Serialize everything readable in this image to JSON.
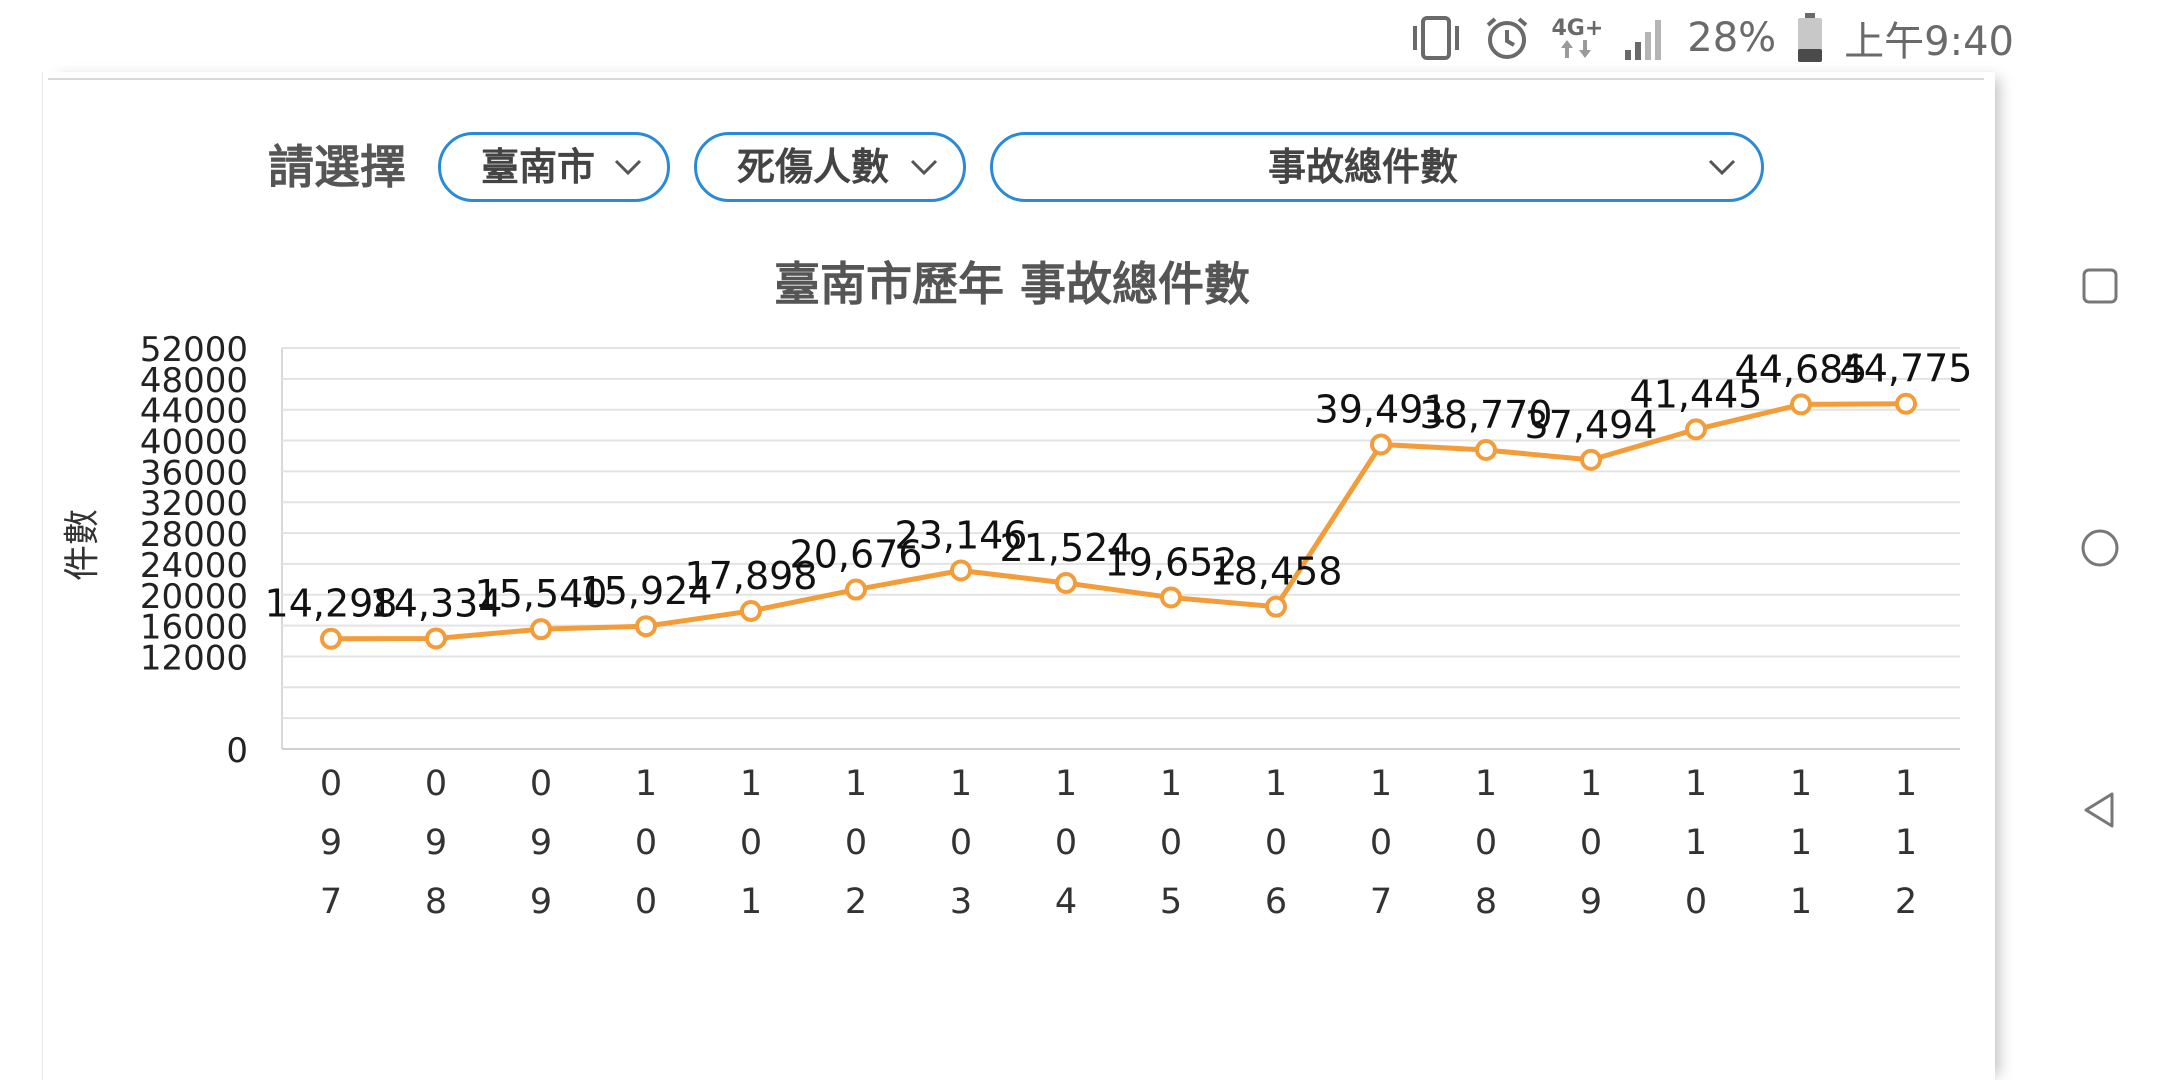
{
  "statusbar": {
    "network": "4G+",
    "battery": "28%",
    "time": "上午9:40"
  },
  "selector": {
    "label": "請選擇",
    "city": "臺南市",
    "category": "死傷人數",
    "metric": "事故總件數"
  },
  "icons": {
    "vibrate": "vibrate-icon",
    "alarm": "alarm-icon",
    "network": "network-4g-icon",
    "signal": "signal-icon",
    "battery": "battery-icon",
    "nav_recents": "square-icon",
    "nav_home": "circle-icon",
    "nav_back": "triangle-back-icon",
    "dropdown": "chevron-down-icon"
  },
  "colors": {
    "accent": "#2a8ad8",
    "series": "#f39c3a"
  },
  "chart_data": {
    "type": "line",
    "title": "臺南市歷年 事故總件數",
    "ylabel": "件數",
    "xlabel": "",
    "categories": [
      "097",
      "098",
      "099",
      "100",
      "101",
      "102",
      "103",
      "104",
      "105",
      "106",
      "107",
      "108",
      "109",
      "110",
      "111",
      "112"
    ],
    "series": [
      {
        "values": [
          14298,
          14334,
          15540,
          15924,
          17898,
          20676,
          23146,
          21524,
          19652,
          18458,
          39491,
          38770,
          37494,
          41445,
          44685,
          44775
        ],
        "labels": [
          "14,298",
          "14,334",
          "15,540",
          "15,924",
          "17,898",
          "20,676",
          "23,146",
          "21,524",
          "19,652",
          "18,458",
          "39,491",
          "38,770",
          "37,494",
          "41,445",
          "44,685",
          "44,775"
        ]
      }
    ],
    "ylim": [
      0,
      52000
    ],
    "yticks": [
      "0",
      "12000",
      "16000",
      "20000",
      "24000",
      "28000",
      "32000",
      "36000",
      "40000",
      "44000",
      "48000",
      "52000"
    ],
    "ytick_values": [
      0,
      12000,
      16000,
      20000,
      24000,
      28000,
      32000,
      36000,
      40000,
      44000,
      48000,
      52000
    ],
    "grid": true,
    "legend": "none"
  }
}
